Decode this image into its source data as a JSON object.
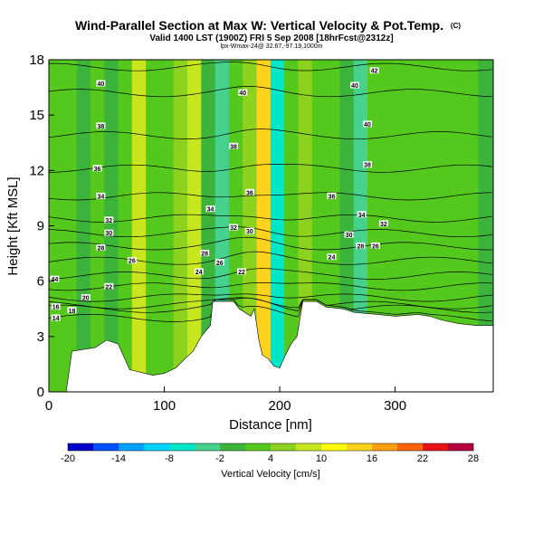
{
  "header": {
    "title": "Wind-Parallel Section at Max W: Vertical Velocity & Pot.Temp.",
    "title_mark": "(C)",
    "subtitle": "Valid 1400 LST (1900Z) FRI 5 Sep 2008 [18hrFcst@2312z]",
    "note": "lpx-Wmax-24@ 32.67,-97.19,1000m"
  },
  "chart_data": {
    "type": "heatmap",
    "xlabel": "Distance [nm]",
    "ylabel": "Height [Kft MSL]",
    "xlim": [
      0,
      385
    ],
    "ylim": [
      0,
      18
    ],
    "x_ticks": [
      0,
      100,
      200,
      300
    ],
    "y_ticks": [
      0,
      3,
      6,
      9,
      12,
      15,
      18
    ],
    "colorbar": {
      "label": "Vertical Velocity [cm/s]",
      "tick_labels": [
        -20,
        -14,
        -8,
        -2,
        4,
        10,
        16,
        22,
        28
      ],
      "bins": [
        -20,
        -17,
        -14,
        -11,
        -8,
        -5,
        -2,
        1,
        4,
        7,
        10,
        13,
        16,
        19,
        22,
        25,
        28
      ],
      "colors": [
        "#0000c8",
        "#0050ff",
        "#00a0ff",
        "#00d2ff",
        "#00e6c8",
        "#46d28c",
        "#3cb43c",
        "#55c81e",
        "#8cd21e",
        "#c8e61e",
        "#ffff00",
        "#ffd21e",
        "#ffa014",
        "#ff640a",
        "#e61414",
        "#b4003c"
      ]
    },
    "velocity_columns": [
      {
        "x": 0,
        "w": 2
      },
      {
        "x": 12,
        "w": 2
      },
      {
        "x": 24,
        "w": 0
      },
      {
        "x": 36,
        "w": 2
      },
      {
        "x": 48,
        "w": 0
      },
      {
        "x": 60,
        "w": 3
      },
      {
        "x": 72,
        "w": 8
      },
      {
        "x": 84,
        "w": 3
      },
      {
        "x": 96,
        "w": 1
      },
      {
        "x": 108,
        "w": 4
      },
      {
        "x": 120,
        "w": 9
      },
      {
        "x": 132,
        "w": -2
      },
      {
        "x": 144,
        "w": -5
      },
      {
        "x": 156,
        "w": 2
      },
      {
        "x": 168,
        "w": 6
      },
      {
        "x": 180,
        "w": 14
      },
      {
        "x": 192,
        "w": -6
      },
      {
        "x": 204,
        "w": 1
      },
      {
        "x": 216,
        "w": 4
      },
      {
        "x": 228,
        "w": 2
      },
      {
        "x": 240,
        "w": 3
      },
      {
        "x": 252,
        "w": 0
      },
      {
        "x": 264,
        "w": -3
      },
      {
        "x": 276,
        "w": 2
      },
      {
        "x": 288,
        "w": 3
      },
      {
        "x": 300,
        "w": 1
      },
      {
        "x": 312,
        "w": 2
      },
      {
        "x": 324,
        "w": 1
      },
      {
        "x": 336,
        "w": 3
      },
      {
        "x": 348,
        "w": 1
      },
      {
        "x": 360,
        "w": 2
      },
      {
        "x": 372,
        "w": 0
      }
    ],
    "terrain": [
      [
        0,
        0
      ],
      [
        15,
        0
      ],
      [
        20,
        2.2
      ],
      [
        40,
        2.4
      ],
      [
        50,
        2.8
      ],
      [
        60,
        2.6
      ],
      [
        70,
        1.2
      ],
      [
        90,
        0.9
      ],
      [
        100,
        1.0
      ],
      [
        110,
        1.3
      ],
      [
        118,
        1.8
      ],
      [
        125,
        2.2
      ],
      [
        132,
        3.0
      ],
      [
        140,
        3.6
      ],
      [
        142,
        4.9
      ],
      [
        160,
        4.9
      ],
      [
        165,
        4.5
      ],
      [
        175,
        4.1
      ],
      [
        178,
        4.5
      ],
      [
        182,
        2.8
      ],
      [
        185,
        2.0
      ],
      [
        190,
        1.8
      ],
      [
        195,
        1.4
      ],
      [
        200,
        1.3
      ],
      [
        205,
        2.0
      ],
      [
        210,
        2.6
      ],
      [
        215,
        3.0
      ],
      [
        220,
        4.9
      ],
      [
        232,
        4.9
      ],
      [
        240,
        4.6
      ],
      [
        255,
        4.5
      ],
      [
        265,
        4.3
      ],
      [
        285,
        4.2
      ],
      [
        300,
        4.1
      ],
      [
        320,
        4.2
      ],
      [
        330,
        4.1
      ],
      [
        340,
        3.9
      ],
      [
        355,
        3.7
      ],
      [
        370,
        3.6
      ],
      [
        385,
        3.6
      ]
    ],
    "theta_lines": [
      {
        "value": 14,
        "h": 4.0
      },
      {
        "value": 16,
        "h": 4.5
      },
      {
        "value": 18,
        "h": 4.7
      },
      {
        "value": 20,
        "h": 5.1
      },
      {
        "value": 22,
        "h": 5.7
      },
      {
        "value": 24,
        "h": 6.3
      },
      {
        "value": 26,
        "h": 7.1
      },
      {
        "value": 28,
        "h": 7.9
      },
      {
        "value": 30,
        "h": 8.6
      },
      {
        "value": 32,
        "h": 9.4
      },
      {
        "value": 34,
        "h": 10.6
      },
      {
        "value": 36,
        "h": 12.1
      },
      {
        "value": 38,
        "h": 13.9
      },
      {
        "value": 40,
        "h": 16.2
      },
      {
        "value": 42,
        "h": 17.6
      }
    ],
    "contour_labels": [
      {
        "text": "44",
        "x": 5,
        "y": 6.1
      },
      {
        "text": "20",
        "x": 32,
        "y": 5.1
      },
      {
        "text": "18",
        "x": 20,
        "y": 4.4
      },
      {
        "text": "16",
        "x": 6,
        "y": 4.6
      },
      {
        "text": "14",
        "x": 6,
        "y": 4.0
      },
      {
        "text": "22",
        "x": 52,
        "y": 5.7
      },
      {
        "text": "26",
        "x": 72,
        "y": 7.1
      },
      {
        "text": "28",
        "x": 45,
        "y": 7.8
      },
      {
        "text": "30",
        "x": 52,
        "y": 8.6
      },
      {
        "text": "32",
        "x": 52,
        "y": 9.3
      },
      {
        "text": "34",
        "x": 45,
        "y": 10.6
      },
      {
        "text": "36",
        "x": 42,
        "y": 12.1
      },
      {
        "text": "38",
        "x": 45,
        "y": 14.4
      },
      {
        "text": "40",
        "x": 45,
        "y": 16.7
      },
      {
        "text": "40",
        "x": 168,
        "y": 16.2
      },
      {
        "text": "38",
        "x": 160,
        "y": 13.3
      },
      {
        "text": "36",
        "x": 174,
        "y": 10.8
      },
      {
        "text": "34",
        "x": 140,
        "y": 9.9
      },
      {
        "text": "32",
        "x": 160,
        "y": 8.9
      },
      {
        "text": "30",
        "x": 174,
        "y": 8.7
      },
      {
        "text": "28",
        "x": 135,
        "y": 7.5
      },
      {
        "text": "26",
        "x": 148,
        "y": 7.0
      },
      {
        "text": "24",
        "x": 130,
        "y": 6.5
      },
      {
        "text": "22",
        "x": 167,
        "y": 6.5
      },
      {
        "text": "42",
        "x": 282,
        "y": 17.4
      },
      {
        "text": "40",
        "x": 265,
        "y": 16.6
      },
      {
        "text": "40",
        "x": 276,
        "y": 14.5
      },
      {
        "text": "38",
        "x": 276,
        "y": 12.3
      },
      {
        "text": "36",
        "x": 245,
        "y": 10.6
      },
      {
        "text": "34",
        "x": 271,
        "y": 9.6
      },
      {
        "text": "32",
        "x": 290,
        "y": 9.1
      },
      {
        "text": "30",
        "x": 260,
        "y": 8.5
      },
      {
        "text": "28",
        "x": 270,
        "y": 7.9
      },
      {
        "text": "26",
        "x": 283,
        "y": 7.9
      },
      {
        "text": "24",
        "x": 245,
        "y": 7.3
      }
    ]
  }
}
